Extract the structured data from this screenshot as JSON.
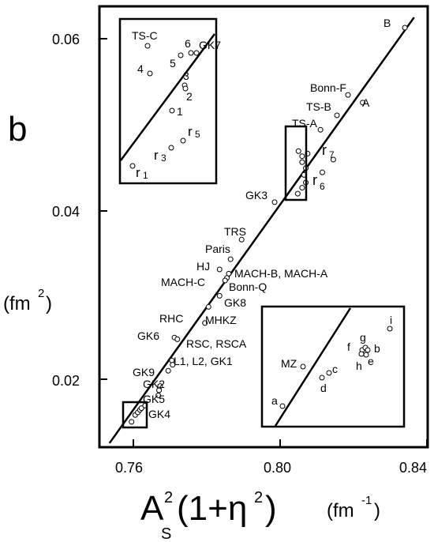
{
  "chart_data": {
    "type": "scatter",
    "panel_label": "b",
    "ylabel_unit": "(fm",
    "ylabel_sup": "2",
    "ylabel_close": ")",
    "xlabel_A": "A",
    "xlabel_sup": "2",
    "xlabel_sub": "S",
    "xlabel_rest": "(1+η",
    "xlabel_rest_sup": "2",
    "xlabel_close": ")",
    "xunit_open": "(fm",
    "xunit_sup": "-1",
    "xunit_close": ")",
    "xlim": [
      0.754,
      0.84
    ],
    "ylim": [
      0.0125,
      0.0625
    ],
    "xticks": [
      0.76,
      0.8,
      0.84
    ],
    "xtick_labels": [
      "0.76",
      "0.80",
      "0.84"
    ],
    "yticks": [
      0.02,
      0.04,
      0.06
    ],
    "ytick_labels": [
      "0.02",
      "0.04",
      "0.06"
    ],
    "fit_line": {
      "x": [
        0.7535,
        0.8365
      ],
      "y": [
        0.0125,
        0.0625
      ]
    },
    "points": [
      {
        "x": 0.834,
        "y": 0.0613
      },
      {
        "x": 0.8185,
        "y": 0.0534
      },
      {
        "x": 0.8225,
        "y": 0.0525
      },
      {
        "x": 0.8155,
        "y": 0.051
      },
      {
        "x": 0.811,
        "y": 0.0493
      },
      {
        "x": 0.8145,
        "y": 0.0458
      },
      {
        "x": 0.8115,
        "y": 0.0443
      },
      {
        "x": 0.805,
        "y": 0.0468
      },
      {
        "x": 0.806,
        "y": 0.0462
      },
      {
        "x": 0.8075,
        "y": 0.0465
      },
      {
        "x": 0.806,
        "y": 0.0455
      },
      {
        "x": 0.807,
        "y": 0.0448
      },
      {
        "x": 0.8065,
        "y": 0.044
      },
      {
        "x": 0.807,
        "y": 0.0431
      },
      {
        "x": 0.806,
        "y": 0.0425
      },
      {
        "x": 0.8048,
        "y": 0.0418
      },
      {
        "x": 0.7985,
        "y": 0.0408
      },
      {
        "x": 0.7895,
        "y": 0.0364
      },
      {
        "x": 0.7865,
        "y": 0.0341
      },
      {
        "x": 0.7835,
        "y": 0.0329
      },
      {
        "x": 0.786,
        "y": 0.0324
      },
      {
        "x": 0.7855,
        "y": 0.0319
      },
      {
        "x": 0.785,
        "y": 0.0316
      },
      {
        "x": 0.7835,
        "y": 0.0298
      },
      {
        "x": 0.7805,
        "y": 0.0285
      },
      {
        "x": 0.7795,
        "y": 0.0266
      },
      {
        "x": 0.7712,
        "y": 0.0249
      },
      {
        "x": 0.772,
        "y": 0.0247
      },
      {
        "x": 0.7705,
        "y": 0.0222
      },
      {
        "x": 0.7707,
        "y": 0.0217
      },
      {
        "x": 0.7695,
        "y": 0.021
      },
      {
        "x": 0.7673,
        "y": 0.0192
      },
      {
        "x": 0.767,
        "y": 0.0187
      },
      {
        "x": 0.7668,
        "y": 0.0181
      },
      {
        "x": 0.7595,
        "y": 0.015
      },
      {
        "x": 0.7605,
        "y": 0.0158
      },
      {
        "x": 0.7612,
        "y": 0.0161
      },
      {
        "x": 0.7618,
        "y": 0.0164
      },
      {
        "x": 0.7622,
        "y": 0.0166
      },
      {
        "x": 0.7632,
        "y": 0.0169
      }
    ],
    "labels": [
      "B",
      "Bonn-F",
      "A",
      "TS-B",
      "TS-A",
      "GK3",
      "TRS",
      "Paris",
      "HJ",
      "MACH-B, MACH-A",
      "MACH-C",
      "Bonn-Q",
      "GK8",
      "RHC",
      "MHKZ",
      "GK6",
      "RSC, RSCA",
      "L1, L2, GK1",
      "GK9",
      "GK2",
      "GK5",
      "GK4"
    ],
    "r_labels": {
      "r6_main": "r",
      "r6_main_sub": "6",
      "r7_main": "r",
      "r7_main_sub": "7"
    },
    "inset_top": {
      "labels": [
        "TS-C",
        "6",
        "GK7",
        "5",
        "4",
        "3",
        "2",
        "1"
      ],
      "r_labels": [
        "r",
        "5",
        "r",
        "3",
        "r",
        "1"
      ]
    },
    "inset_bottom": {
      "labels": [
        "MZ",
        "a",
        "c",
        "d",
        "f",
        "g",
        "b",
        "h",
        "e",
        "i"
      ]
    }
  }
}
